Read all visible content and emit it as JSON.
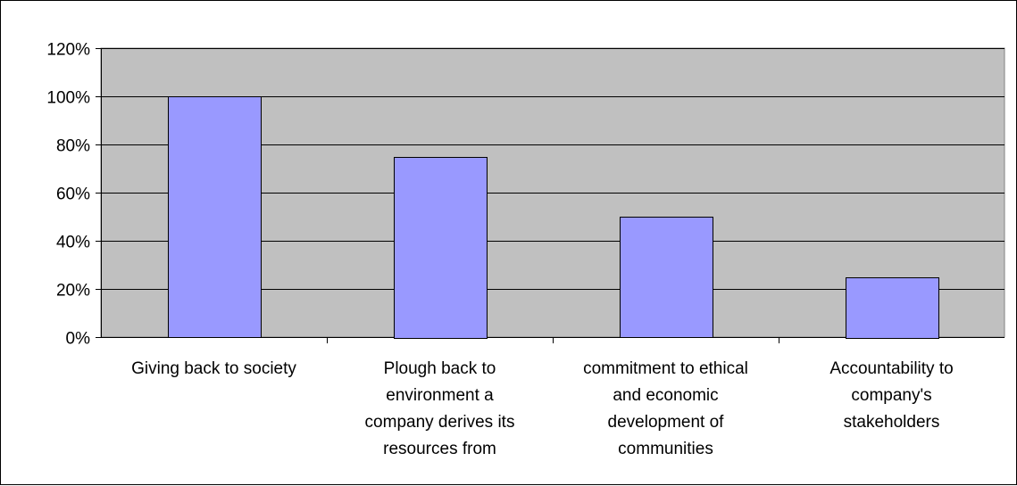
{
  "chart_data": {
    "type": "bar",
    "categories": [
      "Giving back to society",
      "Plough back to environment a company derives its resources from",
      "commitment to ethical and economic development of communities",
      "Accountability to company's stakeholders"
    ],
    "category_label_lines": [
      [
        "Giving back to society"
      ],
      [
        "Plough back to",
        "environment a",
        "company derives its",
        "resources from"
      ],
      [
        "commitment to ethical",
        "and economic",
        "development of",
        "communities"
      ],
      [
        "Accountability to",
        "company's",
        "stakeholders"
      ]
    ],
    "values": [
      1.0,
      0.75,
      0.5,
      0.25
    ],
    "y_ticks": [
      "0%",
      "20%",
      "40%",
      "60%",
      "80%",
      "100%",
      "120%"
    ],
    "ylim": [
      0,
      1.2
    ],
    "title": "",
    "xlabel": "",
    "ylabel": "",
    "grid": true,
    "legend": "none",
    "colors": {
      "bar_fill": "#9999FF",
      "plot_background": "#C0C0C0",
      "gridline": "#000000",
      "bar_stroke": "#000000"
    }
  }
}
